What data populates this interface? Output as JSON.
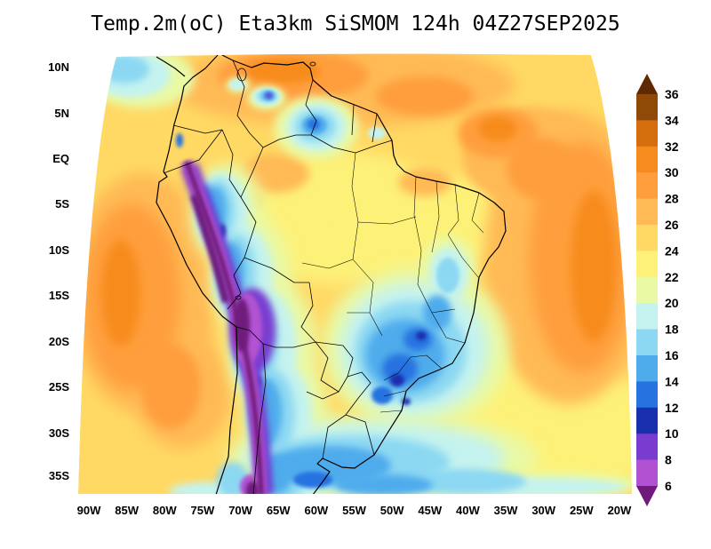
{
  "title": "Temp.2m(oC) Eta3km SiSMOM 124h 04Z27SEP2025",
  "axes": {
    "lat_labels": [
      "10N",
      "5N",
      "EQ",
      "5S",
      "10S",
      "15S",
      "20S",
      "25S",
      "30S",
      "35S"
    ],
    "lon_labels": [
      "90W",
      "85W",
      "80W",
      "75W",
      "70W",
      "65W",
      "60W",
      "55W",
      "50W",
      "45W",
      "40W",
      "35W",
      "30W",
      "25W",
      "20W"
    ]
  },
  "colorbar": {
    "unit": "oC",
    "tick_labels": [
      "36",
      "34",
      "32",
      "30",
      "28",
      "26",
      "24",
      "22",
      "20",
      "18",
      "16",
      "14",
      "12",
      "10",
      "8",
      "6"
    ],
    "cells_top_to_bottom": [
      {
        "range": ">36",
        "color": "#5e2903"
      },
      {
        "range": "34-36",
        "color": "#8f4a08"
      },
      {
        "range": "32-34",
        "color": "#d56f0d"
      },
      {
        "range": "30-32",
        "color": "#f78c1e"
      },
      {
        "range": "28-30",
        "color": "#ff9e3d"
      },
      {
        "range": "26-28",
        "color": "#ffba55"
      },
      {
        "range": "24-26",
        "color": "#ffd964"
      },
      {
        "range": "22-24",
        "color": "#fdf178"
      },
      {
        "range": "20-22",
        "color": "#e9f9a4"
      },
      {
        "range": "18-20",
        "color": "#c5f3ef"
      },
      {
        "range": "16-18",
        "color": "#8cd8f2"
      },
      {
        "range": "14-16",
        "color": "#4facec"
      },
      {
        "range": "12-14",
        "color": "#2572e0"
      },
      {
        "range": "10-12",
        "color": "#1a2fae"
      },
      {
        "range": "8-10",
        "color": "#7a3cd0"
      },
      {
        "range": "6-8",
        "color": "#b152d2"
      },
      {
        "range": "<6",
        "color": "#6f1a7c"
      }
    ]
  },
  "chart_data": {
    "type": "heatmap",
    "title": "Temp.2m(oC) Eta3km SiSMOM 124h 04Z27SEP2025",
    "variable": "2 m air temperature",
    "units": "oC",
    "model": "Eta3km SiSMOM",
    "forecast_hour": "124h",
    "valid_time": "04Z27SEP2025",
    "levels_oC": [
      6,
      8,
      10,
      12,
      14,
      16,
      18,
      20,
      22,
      24,
      26,
      28,
      30,
      32,
      34,
      36
    ],
    "lat_ticks": [
      "10N",
      "5N",
      "EQ",
      "5S",
      "10S",
      "15S",
      "20S",
      "25S",
      "30S",
      "35S"
    ],
    "lon_ticks": [
      "90W",
      "85W",
      "80W",
      "75W",
      "70W",
      "65W",
      "60W",
      "55W",
      "50W",
      "45W",
      "40W",
      "35W",
      "30W",
      "25W",
      "20W"
    ],
    "legend_position": "right",
    "grid": "off",
    "field_summary": [
      {
        "area": "Andes cordillera (Peru/Bolivia/Chile)",
        "temp_oC": "<6 to 10"
      },
      {
        "area": "Altiplano, Bolivia",
        "temp_oC": "6 to 10"
      },
      {
        "area": "Pacific off Peru and north Chile (west domain edge)",
        "temp_oC": "26 to 32"
      },
      {
        "area": "Amazon basin",
        "temp_oC": "24 to 28"
      },
      {
        "area": "North coast (Venezuela, Guianas)",
        "temp_oC": "26 to 32"
      },
      {
        "area": "Interior Venezuela cold pocket",
        "temp_oC": "12 to 20"
      },
      {
        "area": "Colombian Andes pockets",
        "temp_oC": "8 to 18"
      },
      {
        "area": "Central Brazil",
        "temp_oC": "22 to 26"
      },
      {
        "area": "Southeast Brazil highlands",
        "temp_oC": "10 to 18"
      },
      {
        "area": "South Brazil, Uruguay, Pampas along southern edge",
        "temp_oC": "14 to 20"
      },
      {
        "area": "Tropical Atlantic northeast of Brazil",
        "temp_oC": "26 to 32"
      },
      {
        "area": "Subtropical South Atlantic (southeast corner)",
        "temp_oC": "20 to 24"
      }
    ]
  }
}
